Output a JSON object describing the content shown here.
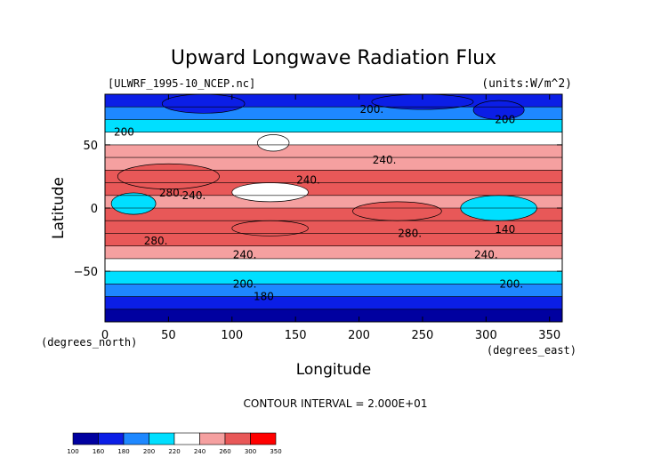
{
  "chart_data": {
    "type": "heatmap",
    "title": "Upward Longwave Radiation Flux",
    "source_label": "[ULWRF_1995-10_NCEP.nc]",
    "units_label": "(units:W/m^2)",
    "xlabel": "Longitude",
    "ylabel": "Latitude",
    "x_unit_label": "(degrees_east)",
    "y_unit_label": "(degrees_north)",
    "xlim": [
      0,
      360
    ],
    "ylim": [
      -90,
      90
    ],
    "x_ticks": [
      0,
      50,
      100,
      150,
      200,
      250,
      300,
      350
    ],
    "x_tick_labels": [
      "0",
      "50",
      "100",
      "150",
      "200",
      "250",
      "300",
      "350"
    ],
    "y_ticks": [
      50,
      0,
      -50
    ],
    "y_tick_labels": [
      "50",
      "0",
      "−50"
    ],
    "contour_interval_text": "CONTOUR INTERVAL = 2.000E+01",
    "contour_labels": [
      {
        "text": "200.",
        "lon": 210,
        "lat": 78
      },
      {
        "text": "200",
        "lon": 15,
        "lat": 60
      },
      {
        "text": "200",
        "lon": 315,
        "lat": 70
      },
      {
        "text": "240.",
        "lon": 220,
        "lat": 38
      },
      {
        "text": "240.",
        "lon": 160,
        "lat": 22
      },
      {
        "text": "240.",
        "lon": 70,
        "lat": 10
      },
      {
        "text": "280.",
        "lon": 52,
        "lat": 12
      },
      {
        "text": "280.",
        "lon": 40,
        "lat": -26
      },
      {
        "text": "280.",
        "lon": 240,
        "lat": -20
      },
      {
        "text": "240.",
        "lon": 110,
        "lat": -37
      },
      {
        "text": "240.",
        "lon": 300,
        "lat": -37
      },
      {
        "text": "200.",
        "lon": 110,
        "lat": -60
      },
      {
        "text": "200.",
        "lon": 320,
        "lat": -60
      },
      {
        "text": "140",
        "lon": 315,
        "lat": -17
      },
      {
        "text": "180",
        "lon": 125,
        "lat": -70
      }
    ],
    "colorbar": {
      "levels": [
        "100",
        "160",
        "180",
        "200",
        "220",
        "240",
        "260",
        "300",
        "350"
      ],
      "colors": [
        "#0000a0",
        "#0b1ee6",
        "#1e88ff",
        "#00dfff",
        "#ffffff",
        "#f5a0a0",
        "#e85858",
        "#ff0000"
      ]
    },
    "band_values": [
      {
        "lat": 90,
        "value": 165
      },
      {
        "lat": 80,
        "value": 190
      },
      {
        "lat": 70,
        "value": 200
      },
      {
        "lat": 60,
        "value": 215
      },
      {
        "lat": 50,
        "value": 230
      },
      {
        "lat": 40,
        "value": 250
      },
      {
        "lat": 30,
        "value": 265
      },
      {
        "lat": 20,
        "value": 270
      },
      {
        "lat": 10,
        "value": 250
      },
      {
        "lat": 0,
        "value": 255
      },
      {
        "lat": -10,
        "value": 275
      },
      {
        "lat": -20,
        "value": 270
      },
      {
        "lat": -30,
        "value": 250
      },
      {
        "lat": -40,
        "value": 232
      },
      {
        "lat": -50,
        "value": 215
      },
      {
        "lat": -60,
        "value": 205
      },
      {
        "lat": -70,
        "value": 185
      },
      {
        "lat": -80,
        "value": 165
      },
      {
        "lat": -90,
        "value": 150
      }
    ],
    "features": [
      {
        "lon_range": [
          210,
          290
        ],
        "lat_range": [
          78,
          90
        ],
        "value": 170
      },
      {
        "lon_range": [
          45,
          110
        ],
        "lat_range": [
          75,
          90
        ],
        "value": 170
      },
      {
        "lon_range": [
          290,
          330
        ],
        "lat_range": [
          70,
          85
        ],
        "value": 160
      },
      {
        "lon_range": [
          120,
          145
        ],
        "lat_range": [
          45,
          58
        ],
        "value": 228
      },
      {
        "lon_range": [
          10,
          90
        ],
        "lat_range": [
          15,
          35
        ],
        "value": 290
      },
      {
        "lon_range": [
          280,
          340
        ],
        "lat_range": [
          -10,
          10
        ],
        "value": 210
      },
      {
        "lon_range": [
          5,
          40
        ],
        "lat_range": [
          -5,
          12
        ],
        "value": 200
      },
      {
        "lon_range": [
          100,
          160
        ],
        "lat_range": [
          -22,
          -10
        ],
        "value": 290
      },
      {
        "lon_range": [
          195,
          265
        ],
        "lat_range": [
          -10,
          5
        ],
        "value": 285
      },
      {
        "lon_range": [
          100,
          160
        ],
        "lat_range": [
          5,
          20
        ],
        "value": 232
      }
    ],
    "grid": false,
    "legend": "colorbar-bottom-left"
  }
}
